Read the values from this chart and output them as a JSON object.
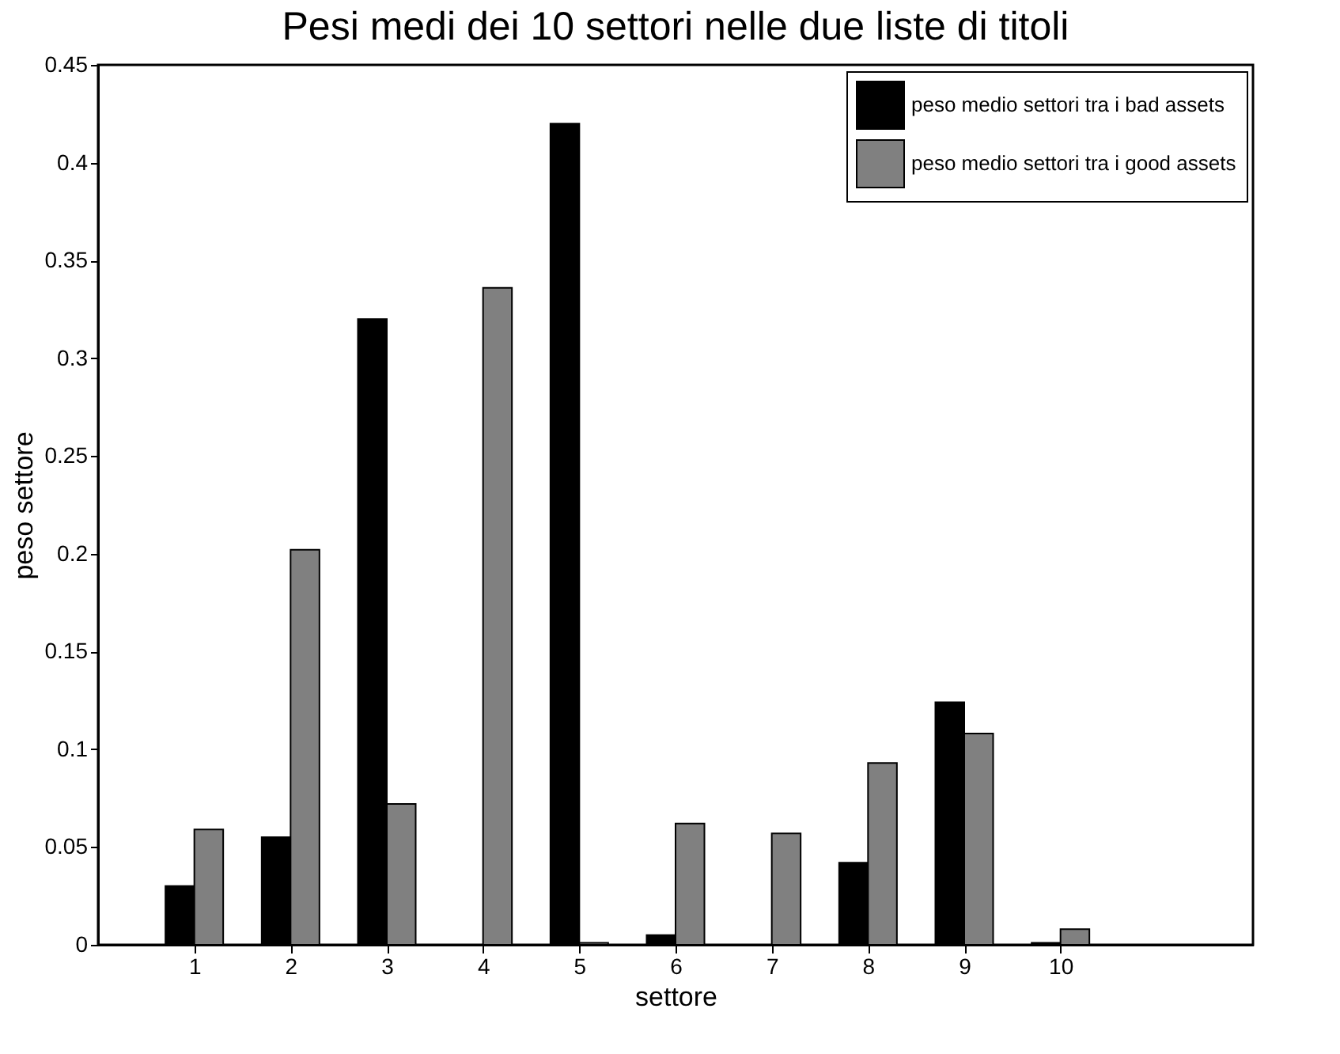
{
  "chart_data": {
    "type": "bar",
    "title": "Pesi medi dei 10 settori nelle due liste di titoli",
    "xlabel": "settore",
    "ylabel": "peso settore",
    "x": [
      1,
      2,
      3,
      4,
      5,
      6,
      7,
      8,
      9,
      10
    ],
    "series": [
      {
        "name": "peso medio settori tra i bad assets",
        "color": "#000000",
        "values": [
          0.03,
          0.055,
          0.32,
          0,
          0.42,
          0.005,
          0,
          0.042,
          0.124,
          0.001
        ]
      },
      {
        "name": "peso medio settori tra i good assets",
        "color": "#808080",
        "values": [
          0.059,
          0.202,
          0.072,
          0.336,
          0.001,
          0.062,
          0.057,
          0.093,
          0.108,
          0.008
        ]
      }
    ],
    "xlim": [
      0,
      12
    ],
    "xticks": [
      1,
      2,
      3,
      4,
      5,
      6,
      7,
      8,
      9,
      10
    ],
    "ylim": [
      0,
      0.45
    ],
    "yticks": [
      0,
      0.05,
      0.1,
      0.15,
      0.2,
      0.25,
      0.3,
      0.35,
      0.4,
      0.45
    ],
    "grid": false,
    "legend": "top right"
  }
}
